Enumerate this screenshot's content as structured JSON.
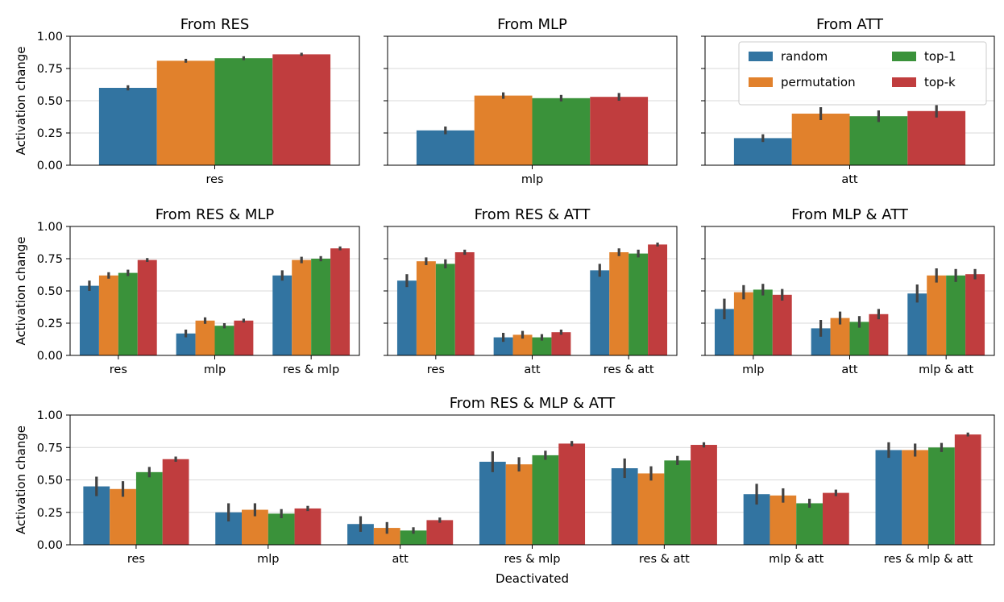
{
  "figure": {
    "ylabel": "Activation change",
    "xlabel": "Deactivated",
    "yticks": [
      "0.00",
      "0.25",
      "0.50",
      "0.75",
      "1.00"
    ],
    "legend": [
      {
        "label": "random",
        "color": "#3274a1"
      },
      {
        "label": "permutation",
        "color": "#e1812c"
      },
      {
        "label": "top-1",
        "color": "#3a923a"
      },
      {
        "label": "top-k",
        "color": "#c03d3e"
      }
    ],
    "legend_position": "top-right of third panel"
  },
  "chart_data": [
    {
      "type": "bar",
      "title": "From RES",
      "categories": [
        "res"
      ],
      "ylim": [
        0,
        1
      ],
      "xlabel": "",
      "ylabel": "Activation change",
      "series": [
        {
          "name": "random",
          "values": [
            0.6
          ],
          "err": [
            0.02
          ]
        },
        {
          "name": "permutation",
          "values": [
            0.81
          ],
          "err": [
            0.015
          ]
        },
        {
          "name": "top-1",
          "values": [
            0.83
          ],
          "err": [
            0.015
          ]
        },
        {
          "name": "top-k",
          "values": [
            0.86
          ],
          "err": [
            0.012
          ]
        }
      ]
    },
    {
      "type": "bar",
      "title": "From MLP",
      "categories": [
        "mlp"
      ],
      "ylim": [
        0,
        1
      ],
      "xlabel": "",
      "ylabel": "",
      "series": [
        {
          "name": "random",
          "values": [
            0.27
          ],
          "err": [
            0.03
          ]
        },
        {
          "name": "permutation",
          "values": [
            0.54
          ],
          "err": [
            0.025
          ]
        },
        {
          "name": "top-1",
          "values": [
            0.52
          ],
          "err": [
            0.025
          ]
        },
        {
          "name": "top-k",
          "values": [
            0.53
          ],
          "err": [
            0.03
          ]
        }
      ]
    },
    {
      "type": "bar",
      "title": "From ATT",
      "categories": [
        "att"
      ],
      "ylim": [
        0,
        1
      ],
      "xlabel": "",
      "ylabel": "",
      "series": [
        {
          "name": "random",
          "values": [
            0.21
          ],
          "err": [
            0.03
          ]
        },
        {
          "name": "permutation",
          "values": [
            0.4
          ],
          "err": [
            0.05
          ]
        },
        {
          "name": "top-1",
          "values": [
            0.38
          ],
          "err": [
            0.045
          ]
        },
        {
          "name": "top-k",
          "values": [
            0.42
          ],
          "err": [
            0.05
          ]
        }
      ]
    },
    {
      "type": "bar",
      "title": "From RES & MLP",
      "categories": [
        "res",
        "mlp",
        "res & mlp"
      ],
      "ylim": [
        0,
        1
      ],
      "xlabel": "",
      "ylabel": "Activation change",
      "series": [
        {
          "name": "random",
          "values": [
            0.54,
            0.17,
            0.62
          ],
          "err": [
            0.04,
            0.03,
            0.04
          ]
        },
        {
          "name": "permutation",
          "values": [
            0.62,
            0.27,
            0.74
          ],
          "err": [
            0.025,
            0.025,
            0.025
          ]
        },
        {
          "name": "top-1",
          "values": [
            0.64,
            0.23,
            0.75
          ],
          "err": [
            0.025,
            0.02,
            0.02
          ]
        },
        {
          "name": "top-k",
          "values": [
            0.74,
            0.27,
            0.83
          ],
          "err": [
            0.015,
            0.015,
            0.015
          ]
        }
      ]
    },
    {
      "type": "bar",
      "title": "From RES & ATT",
      "categories": [
        "res",
        "att",
        "res & att"
      ],
      "ylim": [
        0,
        1
      ],
      "xlabel": "",
      "ylabel": "",
      "series": [
        {
          "name": "random",
          "values": [
            0.58,
            0.14,
            0.66
          ],
          "err": [
            0.05,
            0.035,
            0.05
          ]
        },
        {
          "name": "permutation",
          "values": [
            0.73,
            0.16,
            0.8
          ],
          "err": [
            0.03,
            0.03,
            0.03
          ]
        },
        {
          "name": "top-1",
          "values": [
            0.71,
            0.14,
            0.79
          ],
          "err": [
            0.035,
            0.025,
            0.03
          ]
        },
        {
          "name": "top-k",
          "values": [
            0.8,
            0.18,
            0.86
          ],
          "err": [
            0.02,
            0.02,
            0.015
          ]
        }
      ]
    },
    {
      "type": "bar",
      "title": "From MLP & ATT",
      "categories": [
        "mlp",
        "att",
        "mlp & att"
      ],
      "ylim": [
        0,
        1
      ],
      "xlabel": "",
      "ylabel": "",
      "series": [
        {
          "name": "random",
          "values": [
            0.36,
            0.21,
            0.48
          ],
          "err": [
            0.08,
            0.065,
            0.07
          ]
        },
        {
          "name": "permutation",
          "values": [
            0.49,
            0.29,
            0.62
          ],
          "err": [
            0.055,
            0.05,
            0.055
          ]
        },
        {
          "name": "top-1",
          "values": [
            0.51,
            0.26,
            0.62
          ],
          "err": [
            0.045,
            0.045,
            0.05
          ]
        },
        {
          "name": "top-k",
          "values": [
            0.47,
            0.32,
            0.63
          ],
          "err": [
            0.045,
            0.04,
            0.04
          ]
        }
      ]
    },
    {
      "type": "bar",
      "title": "From RES & MLP & ATT",
      "categories": [
        "res",
        "mlp",
        "att",
        "res & mlp",
        "res & att",
        "mlp & att",
        "res & mlp & att"
      ],
      "ylim": [
        0,
        1
      ],
      "xlabel": "Deactivated",
      "ylabel": "Activation change",
      "series": [
        {
          "name": "random",
          "values": [
            0.45,
            0.25,
            0.16,
            0.64,
            0.59,
            0.39,
            0.73
          ],
          "err": [
            0.075,
            0.07,
            0.06,
            0.08,
            0.075,
            0.08,
            0.06
          ]
        },
        {
          "name": "permutation",
          "values": [
            0.43,
            0.27,
            0.13,
            0.62,
            0.55,
            0.38,
            0.73
          ],
          "err": [
            0.06,
            0.05,
            0.045,
            0.055,
            0.055,
            0.055,
            0.05
          ]
        },
        {
          "name": "top-1",
          "values": [
            0.56,
            0.24,
            0.11,
            0.69,
            0.65,
            0.32,
            0.75
          ],
          "err": [
            0.04,
            0.035,
            0.025,
            0.035,
            0.035,
            0.035,
            0.035
          ]
        },
        {
          "name": "top-k",
          "values": [
            0.66,
            0.28,
            0.19,
            0.78,
            0.77,
            0.4,
            0.85
          ],
          "err": [
            0.02,
            0.02,
            0.02,
            0.02,
            0.02,
            0.025,
            0.015
          ]
        }
      ]
    }
  ]
}
